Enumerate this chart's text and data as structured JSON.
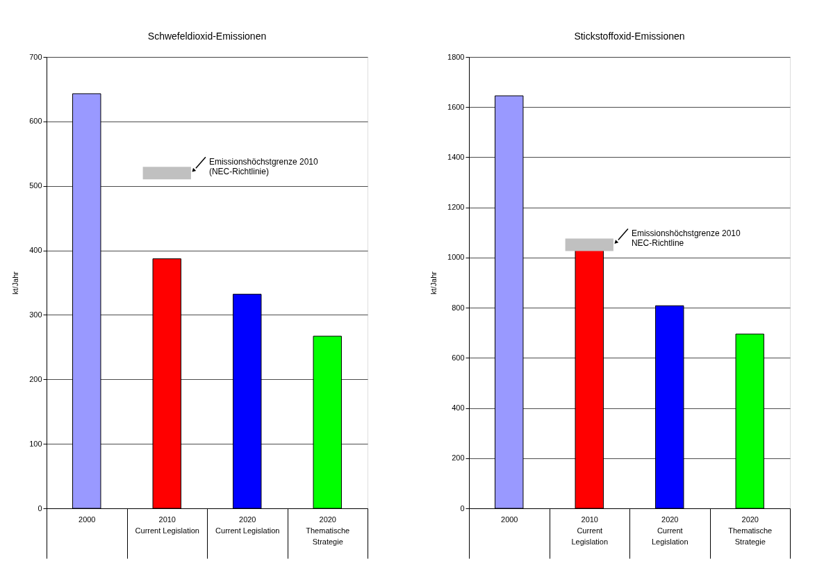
{
  "chart_data": [
    {
      "type": "bar",
      "title": "Schwefeldioxid-Emissionen",
      "ylabel": "kt/Jahr",
      "categories": [
        "2000",
        "2010\nCurrent Legislation",
        "2020\nCurrent Legislation",
        "2020\nThematische\nStrategie"
      ],
      "values": [
        643,
        387,
        332,
        267
      ],
      "colors": [
        "#9999ff",
        "#ff0000",
        "#0000ff",
        "#00ff00"
      ],
      "ylim": [
        0,
        700
      ],
      "yticks": [
        0,
        100,
        200,
        300,
        400,
        500,
        600,
        700
      ],
      "grid": "y",
      "legend": false,
      "ref_lines": [
        {
          "axis": "y",
          "value": 520,
          "label": "Emissionshöchstgrenze 2010\n(NEC-Richtlinie)",
          "color": "#c0c0c0"
        }
      ]
    },
    {
      "type": "bar",
      "title": "Stickstoffoxid-Emissionen",
      "ylabel": "kt/Jahr",
      "categories": [
        "2000",
        "2010\nCurrent\nLegislation",
        "2020\nCurrent\nLegislation",
        "2020\nThematische\nStrategie"
      ],
      "values": [
        1645,
        1030,
        808,
        695
      ],
      "colors": [
        "#9999ff",
        "#ff0000",
        "#0000ff",
        "#00ff00"
      ],
      "ylim": [
        0,
        1800
      ],
      "yticks": [
        0,
        200,
        400,
        600,
        800,
        1000,
        1200,
        1400,
        1600,
        1800
      ],
      "grid": "y",
      "legend": false,
      "ref_lines": [
        {
          "axis": "y",
          "value": 1051,
          "label": "Emissionshöchstgrenze 2010\nNEC-Richtline",
          "color": "#c0c0c0"
        }
      ]
    }
  ]
}
